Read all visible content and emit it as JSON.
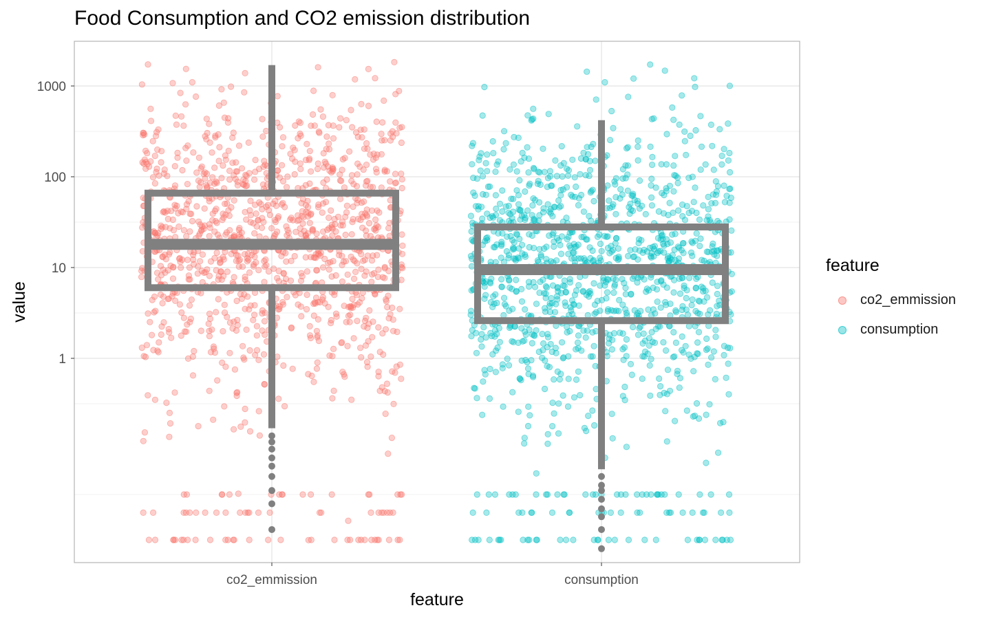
{
  "chart_data": {
    "type": "box",
    "title": "Food Consumption and CO2 emission distribution",
    "xlabel": "feature",
    "ylabel": "value",
    "y_scale": "log10",
    "yticks": [
      {
        "value": 1,
        "label": "1"
      },
      {
        "value": 10,
        "label": "10"
      },
      {
        "value": 100,
        "label": "100"
      },
      {
        "value": 1000,
        "label": "1000"
      }
    ],
    "ylim": [
      0.001,
      3000
    ],
    "grid": true,
    "legend": {
      "title": "feature",
      "position": "right",
      "entries": [
        "co2_emmission",
        "consumption"
      ]
    },
    "categories": [
      "co2_emmission",
      "consumption"
    ],
    "series": [
      {
        "category": "co2_emmission",
        "color": "#F8766D",
        "box": {
          "whisker_low": 0.17,
          "q1": 6,
          "median": 18,
          "q3": 66,
          "whisker_high": 1700
        },
        "outliers": [
          0.14,
          0.12,
          0.1,
          0.08,
          0.065,
          0.05,
          0.035,
          0.025,
          0.013
        ],
        "jitter_points": 1300
      },
      {
        "category": "consumption",
        "color": "#00BFC4",
        "box": {
          "whisker_low": 0.06,
          "q1": 2.6,
          "median": 9.5,
          "q3": 28,
          "whisker_high": 420
        },
        "outliers": [
          0.05,
          0.04,
          0.035,
          0.028,
          0.022,
          0.018,
          0.013,
          0.008
        ],
        "jitter_points": 1300
      }
    ],
    "box_color": "#808080"
  }
}
